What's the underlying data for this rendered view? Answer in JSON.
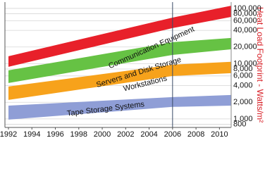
{
  "chart_data": {
    "type": "band",
    "y_axis_label": "Heat Load Footprint - Watts/m²",
    "x": [
      1992,
      2006,
      2011
    ],
    "series": [
      {
        "name": "Communication Equipment",
        "color": "#e8202a",
        "low": [
          8770,
          44000,
          70300
        ],
        "high": [
          13600,
          68200,
          112000
        ]
      },
      {
        "name": "Servers and Disk Storage",
        "color": "#66c244",
        "low": [
          4460,
          14400,
          18200
        ],
        "high": [
          7570,
          24500,
          29200
        ]
      },
      {
        "name": "Workstations",
        "color": "#f7a21b",
        "low": [
          2210,
          5980,
          6730
        ],
        "high": [
          3850,
          9570,
          10800
        ]
      },
      {
        "name": "Tape Storage Systems",
        "color": "#8f9ed6",
        "low": [
          970,
          1650,
          1740
        ],
        "high": [
          1740,
          2480,
          2710
        ]
      }
    ],
    "xlim": [
      1991.7,
      2011
    ],
    "xticks": [
      1992,
      1994,
      1996,
      1998,
      2000,
      2002,
      2004,
      2006,
      2008,
      2010
    ],
    "ylim": [
      700,
      130000
    ],
    "log_y": true,
    "y_axis_side": "right",
    "yticks": [
      {
        "value": 100000,
        "label": "100,000"
      },
      {
        "value": 80000,
        "label": "80,000"
      },
      {
        "value": 60000,
        "label": "60,000"
      },
      {
        "value": 40000,
        "label": "40,000"
      },
      {
        "value": 20000,
        "label": "20,000"
      },
      {
        "value": 10000,
        "label": "10,000"
      },
      {
        "value": 8000,
        "label": "8,000"
      },
      {
        "value": 6000,
        "label": "6,000"
      },
      {
        "value": 4000,
        "label": "4,000"
      },
      {
        "value": 2000,
        "label": "2,000"
      },
      {
        "value": 1000,
        "label": "1,000"
      },
      800
    ],
    "grid": true,
    "vline": 2006
  }
}
